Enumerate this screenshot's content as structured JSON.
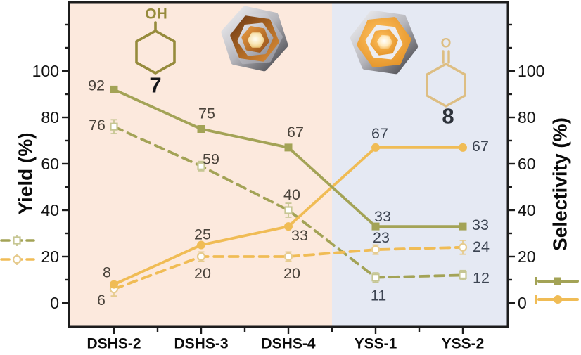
{
  "molecules": {
    "cyclohexanol": {
      "oh_label": "OH",
      "number": "7"
    },
    "cyclohexanone": {
      "o_label": "O",
      "number": "8"
    }
  },
  "chart_data": {
    "type": "line",
    "categories": [
      "DSHS-2",
      "DSHS-3",
      "DSHS-4",
      "YSS-1",
      "YSS-2"
    ],
    "left_axis": {
      "title": "Yield (%)",
      "ticks": [
        0,
        20,
        40,
        60,
        80,
        100
      ],
      "minor_ticks": [
        10,
        30,
        50,
        70,
        90,
        110,
        120
      ],
      "range": [
        -10,
        130
      ]
    },
    "right_axis": {
      "title": "Selectivity (%)",
      "ticks": [
        0,
        20,
        40,
        60,
        80,
        100
      ],
      "minor_ticks": [
        10,
        30,
        50,
        70,
        90,
        110,
        120
      ],
      "range": [
        -10,
        130
      ]
    },
    "regions": [
      {
        "name": "DSHS",
        "color": "#fce9dd",
        "categories": [
          "DSHS-2",
          "DSHS-3",
          "DSHS-4"
        ]
      },
      {
        "name": "YSS",
        "color": "#e5e9f3",
        "categories": [
          "YSS-1",
          "YSS-2"
        ]
      }
    ],
    "series": [
      {
        "name": "yield-7",
        "product": "7",
        "line": "dashed",
        "marker": "square",
        "marker_fill": "open",
        "color": "#a3a356",
        "light": "#c6c693",
        "values": [
          76,
          59,
          40,
          11,
          12
        ],
        "errors": [
          3,
          2,
          3,
          2,
          2
        ],
        "labels": [
          [
            -12,
            -2,
            "end"
          ],
          [
            14,
            -10,
            "middle"
          ],
          [
            5,
            -22,
            "middle"
          ],
          [
            4,
            26,
            "middle"
          ],
          [
            14,
            4,
            "start"
          ]
        ]
      },
      {
        "name": "yield-8",
        "product": "8",
        "line": "dashed",
        "marker": "circle",
        "marker_fill": "open",
        "color": "#f0bc55",
        "light": "#e6cb8e",
        "values": [
          6,
          20,
          20,
          23,
          24
        ],
        "errors": [
          3,
          2,
          2,
          2,
          3
        ],
        "labels": [
          [
            -12,
            16,
            "end"
          ],
          [
            2,
            24,
            "middle"
          ],
          [
            5,
            24,
            "middle"
          ],
          [
            8,
            -17,
            "middle"
          ],
          [
            14,
            -1,
            "start"
          ]
        ]
      },
      {
        "name": "selectivity-8",
        "product": "8",
        "line": "solid",
        "marker": "circle",
        "marker_fill": "filled",
        "color": "#f0bc55",
        "light": "#e6cb8e",
        "values": [
          8,
          25,
          33,
          67,
          67
        ],
        "labels": [
          [
            -10,
            -17,
            "middle"
          ],
          [
            2,
            -15,
            "middle"
          ],
          [
            16,
            13,
            "middle"
          ],
          [
            6,
            -20,
            "middle"
          ],
          [
            13,
            -2,
            "start"
          ]
        ]
      },
      {
        "name": "selectivity-7",
        "product": "7",
        "line": "solid",
        "marker": "square",
        "marker_fill": "filled",
        "color": "#a3a356",
        "light": "#c6c693",
        "values": [
          92,
          75,
          67,
          33,
          33
        ],
        "labels": [
          [
            -13,
            -6,
            "end"
          ],
          [
            8,
            -22,
            "middle"
          ],
          [
            10,
            -22,
            "middle"
          ],
          [
            10,
            -14,
            "middle"
          ],
          [
            13,
            -2,
            "start"
          ]
        ]
      }
    ],
    "label_colors_by_category": [
      "#4a433b",
      "#4a433b",
      "#4a433b",
      "#3c4452",
      "#3c4452"
    ],
    "legends": {
      "left": [
        {
          "series": "yield-7"
        },
        {
          "series": "yield-8"
        }
      ],
      "right": [
        {
          "series": "selectivity-7"
        },
        {
          "series": "selectivity-8"
        }
      ]
    },
    "colors": {
      "axis": "#1c1c1c",
      "tick_label": "#141414",
      "category_label": "#0c0c0c"
    }
  }
}
